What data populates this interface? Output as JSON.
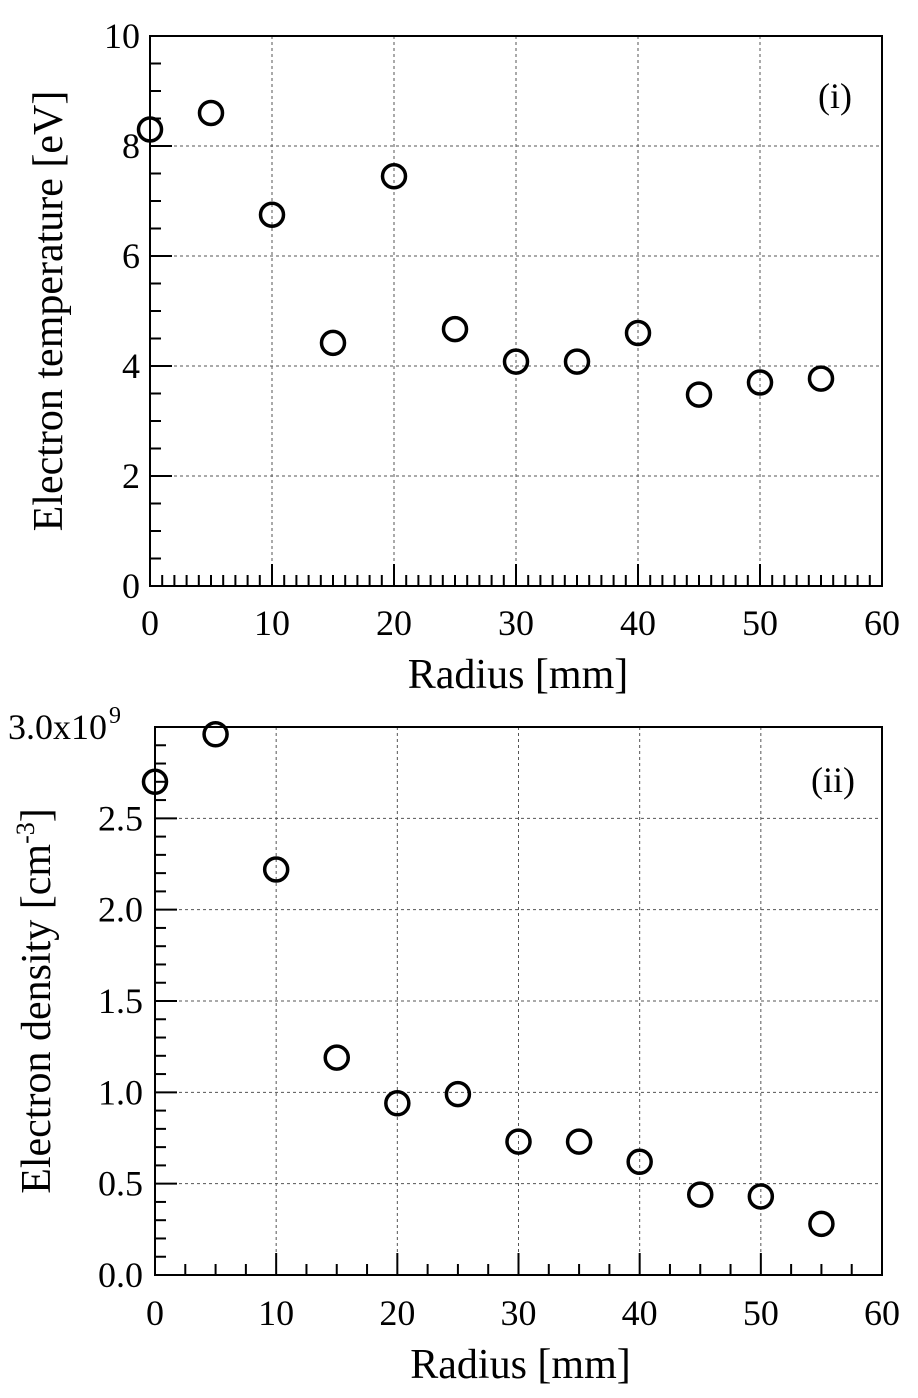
{
  "chart_data": [
    {
      "type": "scatter",
      "panel_label": "(i)",
      "xlabel": "Radius [mm]",
      "ylabel": "Electron temperature [eV]",
      "xlim": [
        0,
        60
      ],
      "ylim": [
        0,
        10
      ],
      "grid": true,
      "x_ticks": [
        0,
        10,
        20,
        30,
        40,
        50,
        60
      ],
      "x_tick_labels": [
        "0",
        "10",
        "20",
        "30",
        "40",
        "50",
        "60"
      ],
      "y_ticks": [
        0,
        2,
        4,
        6,
        8,
        10
      ],
      "y_tick_labels": [
        "0",
        "2",
        "4",
        "6",
        "8",
        "10"
      ],
      "x": [
        0,
        5,
        10,
        15,
        20,
        25,
        30,
        35,
        40,
        45,
        50,
        55
      ],
      "y": [
        8.3,
        8.6,
        6.75,
        4.42,
        7.45,
        4.67,
        4.08,
        4.08,
        4.6,
        3.48,
        3.7,
        3.77
      ]
    },
    {
      "type": "scatter",
      "panel_label": "(ii)",
      "xlabel": "Radius [mm]",
      "ylabel_main": "Electron density [cm",
      "ylabel_sup": "-3",
      "ylabel_end": "]",
      "xlim": [
        0,
        60
      ],
      "ylim": [
        0,
        3.0
      ],
      "grid": true,
      "x_ticks": [
        0,
        10,
        20,
        30,
        40,
        50,
        60
      ],
      "x_tick_labels": [
        "0",
        "10",
        "20",
        "30",
        "40",
        "50",
        "60"
      ],
      "y_ticks": [
        0,
        0.5,
        1.0,
        1.5,
        2.0,
        2.5,
        3.0
      ],
      "y_tick_labels": [
        "0.0",
        "0.5",
        "1.0",
        "1.5",
        "2.0",
        "2.5",
        "3.0x10"
      ],
      "y_top_exponent": "9",
      "x": [
        0,
        5,
        10,
        15,
        20,
        25,
        30,
        35,
        40,
        45,
        50,
        55
      ],
      "y": [
        2.7,
        2.96,
        2.22,
        1.19,
        0.94,
        0.99,
        0.73,
        0.73,
        0.62,
        0.44,
        0.43,
        0.28
      ]
    }
  ]
}
